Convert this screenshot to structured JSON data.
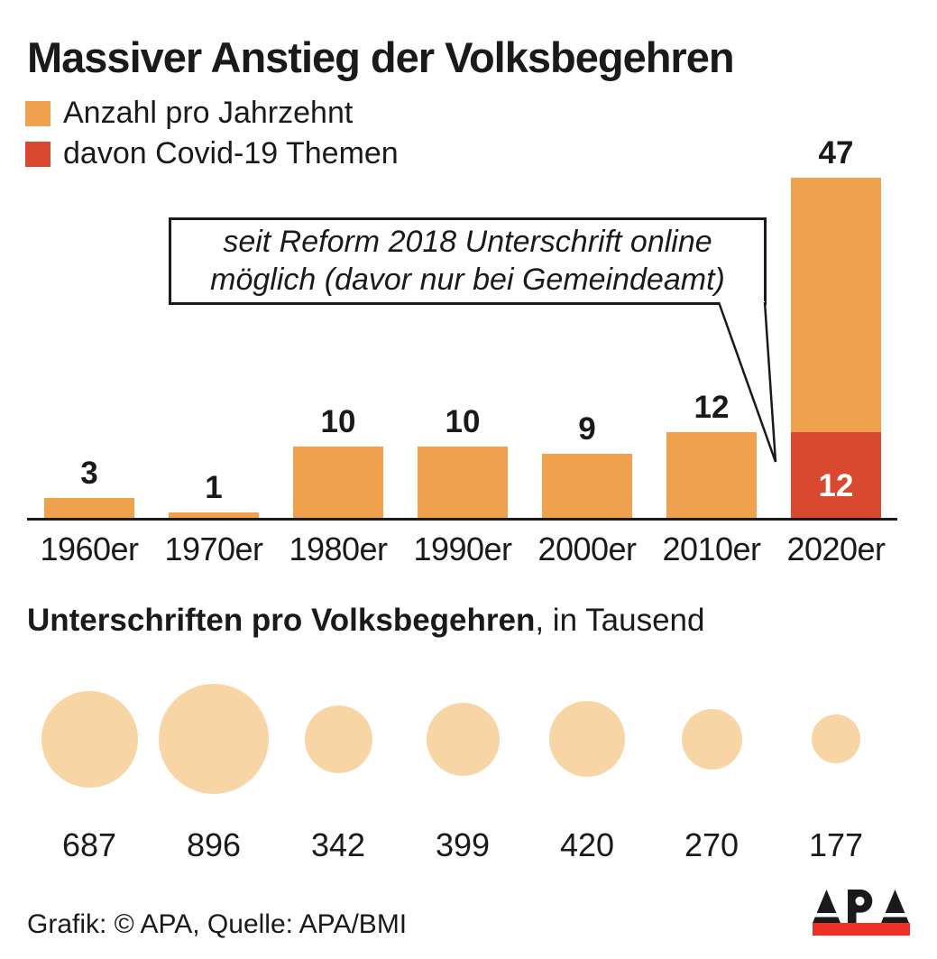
{
  "title": "Massiver Anstieg der Volksbegehren",
  "legend": {
    "items": [
      {
        "label": "Anzahl pro Jahrzehnt",
        "color": "#F0A14D"
      },
      {
        "label": "davon Covid-19 Themen",
        "color": "#D8492F"
      }
    ]
  },
  "annotation": {
    "line1": "seit Reform 2018 Unterschrift online",
    "line2": "möglich (davor nur bei Gemeindeamt)"
  },
  "section2_title": {
    "bold": "Unterschriften pro Volksbegehren",
    "rest": ", in Tausend"
  },
  "footer": {
    "credit": "Grafik: © APA, Quelle: APA/BMI",
    "logo_text": "APA"
  },
  "colors": {
    "bar_orange": "#F0A14D",
    "covid_red": "#D8492F",
    "bubble_peach": "#F8D5A5",
    "logo_red": "#ED3124",
    "text": "#1A1A1A"
  },
  "chart_data": [
    {
      "type": "bar",
      "title": "Massiver Anstieg der Volksbegehren",
      "categories": [
        "1960er",
        "1970er",
        "1980er",
        "1990er",
        "2000er",
        "2010er",
        "2020er"
      ],
      "series": [
        {
          "name": "Anzahl pro Jahrzehnt",
          "values": [
            3,
            1,
            10,
            10,
            9,
            12,
            47
          ],
          "color": "#F0A14D"
        },
        {
          "name": "davon Covid-19 Themen",
          "values": [
            0,
            0,
            0,
            0,
            0,
            0,
            12
          ],
          "color": "#D8492F"
        }
      ],
      "annotation": "seit Reform 2018 Unterschrift online möglich (davor nur bei Gemeindeamt)",
      "ylim": [
        0,
        47
      ],
      "grid": false,
      "legend_position": "top-left",
      "covid_segment_note": "Covid-19 share drawn as red segment inside the 2020er bar, labeled 12 in white"
    },
    {
      "type": "bubble",
      "title": "Unterschriften pro Volksbegehren, in Tausend",
      "values": [
        687,
        896,
        342,
        399,
        420,
        270,
        177
      ],
      "unit": "Tausend",
      "size_encoding": "area",
      "labels": [
        "687",
        "896",
        "342",
        "399",
        "420",
        "270",
        "177"
      ]
    }
  ]
}
